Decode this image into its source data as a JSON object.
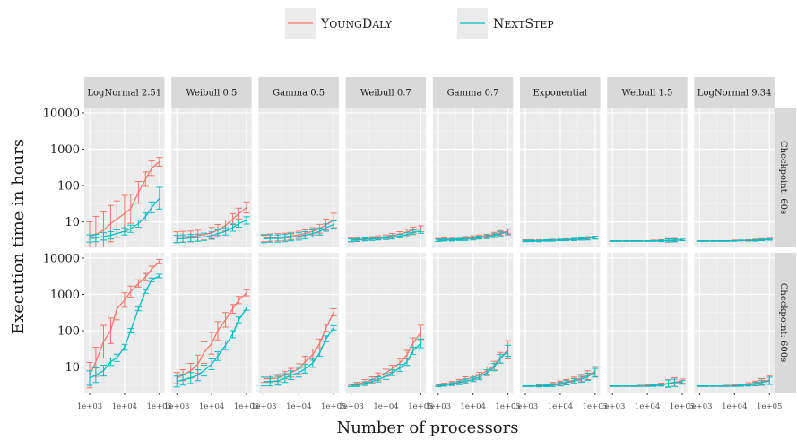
{
  "chart_data": {
    "type": "line",
    "x_scale": "log",
    "y_scale": "log",
    "xlabel": "Number of processors",
    "ylabel": "Execution time in hours",
    "x_ticks": [
      "1e+03",
      "1e+04",
      "1e+05"
    ],
    "x_tick_values": [
      1000,
      10000,
      100000
    ],
    "y_ticks": [
      "10",
      "100",
      "1000",
      "10000"
    ],
    "y_tick_values": [
      10,
      100,
      1000,
      10000
    ],
    "ylim": [
      2,
      14000
    ],
    "xlim": [
      700,
      140000
    ],
    "legend_position": "top",
    "legend": [
      {
        "name": "YoungDaly",
        "color": "#F8766D"
      },
      {
        "name": "NextStep",
        "color": "#00BFC4"
      }
    ],
    "columns": [
      "LogNormal 2.51",
      "Weibull 0.5",
      "Gamma 0.5",
      "Weibull 0.7",
      "Gamma 0.7",
      "Exponential",
      "Weibull 1.5",
      "LogNormal 9.34"
    ],
    "rows": [
      "Checkpoint: 60s",
      "Checkpoint: 600s"
    ],
    "x": [
      1000,
      1500,
      2500,
      4000,
      6000,
      10000,
      15000,
      25000,
      40000,
      60000,
      100000
    ],
    "panels": [
      [
        {
          "YoungDaly": {
            "y": [
              4,
              4.5,
              6,
              9,
              12,
              17,
              23,
              65,
              150,
              300,
              450
            ],
            "err": [
              0.4,
              0.5,
              0.5,
              0.5,
              0.5,
              0.5,
              0.4,
              0.3,
              0.2,
              0.2,
              0.12
            ]
          },
          "NextStep": {
            "y": [
              3.5,
              3.6,
              4,
              4.3,
              4.8,
              5.5,
              6.5,
              9,
              14,
              25,
              45
            ],
            "err": [
              0.1,
              0.1,
              0.1,
              0.1,
              0.1,
              0.1,
              0.1,
              0.1,
              0.1,
              0.15,
              0.3
            ]
          }
        },
        {
          "YoungDaly": {
            "y": [
              3.8,
              3.9,
              4.0,
              4.2,
              4.5,
              5,
              6,
              8,
              12,
              17,
              25
            ],
            "err": [
              0.15,
              0.15,
              0.15,
              0.15,
              0.15,
              0.15,
              0.15,
              0.15,
              0.15,
              0.15,
              0.15
            ]
          },
          "NextStep": {
            "y": [
              3.4,
              3.5,
              3.6,
              3.7,
              3.9,
              4.2,
              4.8,
              5.5,
              7,
              9,
              11
            ],
            "err": [
              0.1,
              0.1,
              0.1,
              0.1,
              0.1,
              0.1,
              0.1,
              0.1,
              0.1,
              0.1,
              0.1
            ]
          }
        },
        {
          "YoungDaly": {
            "y": [
              3.6,
              3.7,
              3.8,
              3.9,
              4.1,
              4.4,
              4.8,
              5.5,
              6.5,
              8.5,
              11
            ],
            "err": [
              0.1,
              0.1,
              0.1,
              0.1,
              0.1,
              0.1,
              0.1,
              0.1,
              0.12,
              0.15,
              0.2
            ]
          },
          "NextStep": {
            "y": [
              3.4,
              3.5,
              3.5,
              3.6,
              3.8,
              4.0,
              4.3,
              4.8,
              5.5,
              7,
              8.5
            ],
            "err": [
              0.1,
              0.1,
              0.1,
              0.1,
              0.1,
              0.1,
              0.1,
              0.1,
              0.1,
              0.1,
              0.1
            ]
          }
        },
        {
          "YoungDaly": {
            "y": [
              3.2,
              3.3,
              3.4,
              3.5,
              3.7,
              3.9,
              4.2,
              4.6,
              5.2,
              6,
              6.5
            ],
            "err": [
              0.05,
              0.05,
              0.05,
              0.05,
              0.05,
              0.05,
              0.06,
              0.07,
              0.08,
              0.08,
              0.08
            ]
          },
          "NextStep": {
            "y": [
              3.1,
              3.2,
              3.3,
              3.4,
              3.5,
              3.6,
              3.8,
              4.1,
              4.5,
              5.2,
              5.6
            ],
            "err": [
              0.04,
              0.04,
              0.04,
              0.04,
              0.04,
              0.04,
              0.05,
              0.05,
              0.06,
              0.06,
              0.06
            ]
          }
        },
        {
          "YoungDaly": {
            "y": [
              3.2,
              3.3,
              3.4,
              3.5,
              3.6,
              3.7,
              3.9,
              4.1,
              4.5,
              5,
              5.5
            ],
            "err": [
              0.04,
              0.04,
              0.04,
              0.04,
              0.04,
              0.05,
              0.05,
              0.05,
              0.06,
              0.06,
              0.07
            ]
          },
          "NextStep": {
            "y": [
              3.1,
              3.2,
              3.2,
              3.3,
              3.4,
              3.5,
              3.7,
              3.9,
              4.2,
              4.7,
              5.3
            ],
            "err": [
              0.03,
              0.03,
              0.03,
              0.03,
              0.04,
              0.04,
              0.04,
              0.05,
              0.05,
              0.06,
              0.08
            ]
          }
        },
        {
          "YoungDaly": {
            "y": [
              3.1,
              3.1,
              3.1,
              3.1,
              3.2,
              3.2,
              3.3,
              3.3,
              3.4,
              3.6,
              3.7
            ],
            "err": [
              0.02,
              0.02,
              0.02,
              0.02,
              0.02,
              0.02,
              0.02,
              0.03,
              0.03,
              0.04,
              0.04
            ]
          },
          "NextStep": {
            "y": [
              3.0,
              3.0,
              3.0,
              3.1,
              3.1,
              3.2,
              3.2,
              3.3,
              3.4,
              3.5,
              3.7
            ],
            "err": [
              0.02,
              0.02,
              0.02,
              0.02,
              0.02,
              0.02,
              0.02,
              0.03,
              0.03,
              0.04,
              0.04
            ]
          }
        },
        {
          "YoungDaly": {
            "y": [
              3.0,
              3.0,
              3.0,
              3.0,
              3.0,
              3.0,
              3.1,
              3.1,
              3.1,
              3.2,
              3.2
            ],
            "err": [
              0.01,
              0.01,
              0.01,
              0.01,
              0.01,
              0.01,
              0.01,
              0.02,
              0.05,
              0.04,
              0.02
            ]
          },
          "NextStep": {
            "y": [
              3.0,
              3.0,
              3.0,
              3.0,
              3.0,
              3.0,
              3.0,
              3.0,
              3.1,
              3.1,
              3.2
            ],
            "err": [
              0.01,
              0.01,
              0.01,
              0.01,
              0.01,
              0.01,
              0.01,
              0.02,
              0.04,
              0.04,
              0.02
            ]
          }
        },
        {
          "YoungDaly": {
            "y": [
              3.0,
              3.0,
              3.0,
              3.0,
              3.0,
              3.1,
              3.1,
              3.1,
              3.2,
              3.3,
              3.4
            ],
            "err": [
              0.01,
              0.01,
              0.01,
              0.01,
              0.01,
              0.01,
              0.01,
              0.02,
              0.02,
              0.02,
              0.02
            ]
          },
          "NextStep": {
            "y": [
              3.0,
              3.0,
              3.0,
              3.0,
              3.0,
              3.0,
              3.1,
              3.1,
              3.1,
              3.2,
              3.3
            ],
            "err": [
              0.01,
              0.01,
              0.01,
              0.01,
              0.01,
              0.01,
              0.01,
              0.01,
              0.02,
              0.02,
              0.02
            ]
          }
        }
      ],
      [
        {
          "YoungDaly": {
            "y": [
              6,
              14,
              50,
              100,
              400,
              700,
              1200,
              2000,
              3000,
              5000,
              8000
            ],
            "err": [
              0.35,
              0.4,
              0.45,
              0.35,
              0.3,
              0.2,
              0.15,
              0.1,
              0.1,
              0.08,
              0.06
            ]
          },
          "NextStep": {
            "y": [
              5,
              6,
              8,
              14,
              18,
              35,
              100,
              400,
              1200,
              2500,
              3200
            ],
            "err": [
              0.2,
              0.2,
              0.15,
              0.1,
              0.1,
              0.08,
              0.06,
              0.05,
              0.05,
              0.05,
              0.05
            ]
          }
        },
        {
          "YoungDaly": {
            "y": [
              5,
              6,
              8,
              12,
              25,
              45,
              100,
              200,
              400,
              700,
              1100
            ],
            "err": [
              0.15,
              0.15,
              0.2,
              0.25,
              0.3,
              0.3,
              0.25,
              0.2,
              0.12,
              0.1,
              0.08
            ]
          },
          "NextStep": {
            "y": [
              4,
              4.5,
              5,
              6,
              8,
              12,
              20,
              40,
              80,
              200,
              420
            ],
            "err": [
              0.15,
              0.15,
              0.15,
              0.15,
              0.15,
              0.15,
              0.12,
              0.12,
              0.1,
              0.08,
              0.06
            ]
          }
        },
        {
          "YoungDaly": {
            "y": [
              4.8,
              4.8,
              5,
              6,
              7,
              9,
              14,
              22,
              45,
              120,
              320
            ],
            "err": [
              0.1,
              0.1,
              0.1,
              0.1,
              0.12,
              0.14,
              0.15,
              0.15,
              0.12,
              0.1,
              0.1
            ]
          },
          "NextStep": {
            "y": [
              4,
              4,
              4.2,
              5,
              6,
              7,
              9,
              13,
              25,
              60,
              120
            ],
            "err": [
              0.12,
              0.12,
              0.12,
              0.12,
              0.12,
              0.12,
              0.12,
              0.12,
              0.1,
              0.08,
              0.06
            ]
          }
        },
        {
          "YoungDaly": {
            "y": [
              3.2,
              3.4,
              3.8,
              4.5,
              5.5,
              7,
              9,
              13,
              22,
              45,
              90
            ],
            "err": [
              0.03,
              0.05,
              0.08,
              0.08,
              0.1,
              0.1,
              0.1,
              0.12,
              0.12,
              0.15,
              0.2
            ]
          },
          "NextStep": {
            "y": [
              3.1,
              3.2,
              3.5,
              4,
              4.6,
              5.5,
              7,
              9.5,
              14,
              28,
              45
            ],
            "err": [
              0.03,
              0.04,
              0.05,
              0.06,
              0.07,
              0.08,
              0.08,
              0.1,
              0.1,
              0.1,
              0.12
            ]
          }
        },
        {
          "YoungDaly": {
            "y": [
              3.2,
              3.3,
              3.6,
              4,
              4.6,
              5.2,
              6,
              8,
              11,
              18,
              30
            ],
            "err": [
              0.03,
              0.04,
              0.05,
              0.06,
              0.07,
              0.07,
              0.08,
              0.1,
              0.12,
              0.15,
              0.25
            ]
          },
          "NextStep": {
            "y": [
              3.1,
              3.2,
              3.4,
              3.7,
              4.1,
              4.6,
              5.3,
              7,
              10,
              17,
              28
            ],
            "err": [
              0.03,
              0.03,
              0.04,
              0.05,
              0.06,
              0.06,
              0.07,
              0.08,
              0.1,
              0.12,
              0.15
            ]
          }
        },
        {
          "YoungDaly": {
            "y": [
              3.0,
              3.0,
              3.1,
              3.2,
              3.4,
              3.6,
              3.9,
              4.4,
              5,
              6,
              7.5
            ],
            "err": [
              0.01,
              0.01,
              0.02,
              0.03,
              0.05,
              0.06,
              0.07,
              0.08,
              0.1,
              0.12,
              0.14
            ]
          },
          "NextStep": {
            "y": [
              3.0,
              3.0,
              3.0,
              3.1,
              3.2,
              3.4,
              3.7,
              4.1,
              4.6,
              5.4,
              7
            ],
            "err": [
              0.01,
              0.01,
              0.02,
              0.03,
              0.04,
              0.05,
              0.06,
              0.07,
              0.08,
              0.1,
              0.12
            ]
          }
        },
        {
          "YoungDaly": {
            "y": [
              3.0,
              3.0,
              3.0,
              3.0,
              3.1,
              3.1,
              3.2,
              3.3,
              3.6,
              3.9,
              4.1
            ],
            "err": [
              0.01,
              0.01,
              0.01,
              0.01,
              0.01,
              0.02,
              0.03,
              0.04,
              0.1,
              0.12,
              0.06
            ]
          },
          "NextStep": {
            "y": [
              3.0,
              3.0,
              3.0,
              3.0,
              3.0,
              3.0,
              3.1,
              3.2,
              3.5,
              3.7,
              3.8
            ],
            "err": [
              0.01,
              0.01,
              0.01,
              0.01,
              0.01,
              0.01,
              0.02,
              0.03,
              0.1,
              0.1,
              0.05
            ]
          }
        },
        {
          "YoungDaly": {
            "y": [
              3.0,
              3.0,
              3.0,
              3.0,
              3.1,
              3.1,
              3.2,
              3.4,
              3.6,
              4.0,
              4.4
            ],
            "err": [
              0.01,
              0.01,
              0.01,
              0.01,
              0.01,
              0.02,
              0.03,
              0.04,
              0.06,
              0.08,
              0.12
            ]
          },
          "NextStep": {
            "y": [
              3.0,
              3.0,
              3.0,
              3.0,
              3.0,
              3.0,
              3.1,
              3.2,
              3.4,
              3.7,
              4.2
            ],
            "err": [
              0.01,
              0.01,
              0.01,
              0.01,
              0.01,
              0.01,
              0.02,
              0.03,
              0.05,
              0.07,
              0.1
            ]
          }
        }
      ]
    ]
  }
}
